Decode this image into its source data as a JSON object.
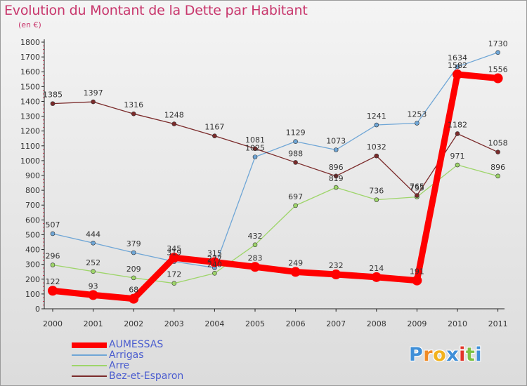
{
  "chart_data": {
    "type": "line",
    "title": "Evolution du Montant de la Dette par Habitant",
    "subtitle": "(en €)",
    "categories": [
      "2000",
      "2001",
      "2002",
      "2003",
      "2004",
      "2005",
      "2006",
      "2007",
      "2008",
      "2009",
      "2010",
      "2011"
    ],
    "ylim": [
      0,
      1800
    ],
    "yticks": [
      0,
      100,
      200,
      300,
      400,
      500,
      600,
      700,
      800,
      900,
      1000,
      1100,
      1200,
      1300,
      1400,
      1500,
      1600,
      1700,
      1800
    ],
    "grid": false,
    "legend_position": "bottom-left",
    "series": [
      {
        "name": "AUMESSAS",
        "color": "#ff0000",
        "emphasis": true,
        "values": [
          122,
          93,
          68,
          345,
          315,
          283,
          249,
          232,
          214,
          191,
          1582,
          1556
        ]
      },
      {
        "name": "Arrigas",
        "color": "#6fa6d6",
        "values": [
          507,
          444,
          379,
          319,
          277,
          1025,
          1129,
          1073,
          1241,
          1253,
          1634,
          1730
        ]
      },
      {
        "name": "Arre",
        "color": "#9ed56a",
        "values": [
          296,
          252,
          209,
          172,
          240,
          432,
          697,
          819,
          736,
          755,
          971,
          896
        ]
      },
      {
        "name": "Bez-et-Esparon",
        "color": "#7b2b2b",
        "values": [
          1385,
          1397,
          1316,
          1248,
          1167,
          1081,
          988,
          896,
          1032,
          765,
          1182,
          1058
        ]
      }
    ]
  },
  "logo": {
    "letters": [
      "P",
      "r",
      "o",
      "x",
      "i",
      "t",
      "i"
    ],
    "colors": [
      "#3f8fd8",
      "#f08a25",
      "#f2b21d",
      "#3f8fd8",
      "#e2352b",
      "#7cc143",
      "#3f8fd8"
    ]
  }
}
